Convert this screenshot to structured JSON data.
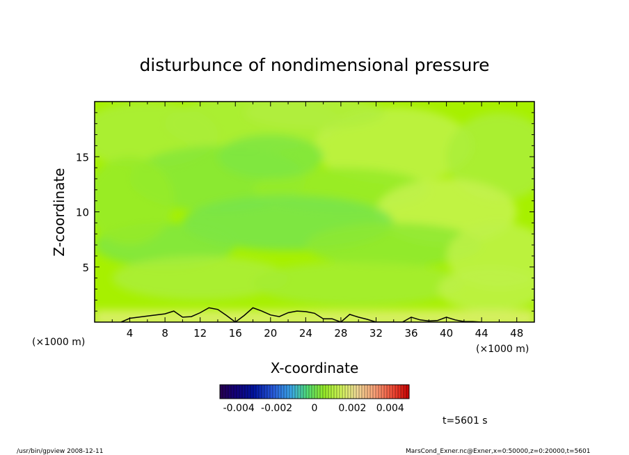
{
  "chart_data": {
    "type": "heatmap",
    "title": "disturbunce of nondimensional pressure",
    "xlabel": "X-coordinate",
    "ylabel": "Z-coordinate",
    "x_unit": "(×1000 m)",
    "y_unit": "(×1000 m)",
    "xlim": [
      0,
      50
    ],
    "ylim": [
      0,
      20
    ],
    "x_ticks": [
      "4",
      "8",
      "12",
      "16",
      "20",
      "24",
      "28",
      "32",
      "36",
      "40",
      "44",
      "48"
    ],
    "y_ticks": [
      "5",
      "10",
      "15"
    ],
    "colorbar": {
      "range": [
        -0.005,
        0.005
      ],
      "ticks": [
        "-0.004",
        "-0.002",
        "0",
        "0.002",
        "0.004"
      ]
    },
    "field_value_range": [
      -0.0002,
      0.0012
    ],
    "contour_level": 0.001,
    "contour_x": [
      3,
      4,
      6,
      8,
      9,
      10,
      11,
      12,
      13,
      14,
      15,
      16,
      17,
      18,
      19,
      20,
      21,
      22,
      23,
      24,
      25,
      26,
      27,
      28,
      29,
      30,
      31,
      32,
      35,
      36,
      37,
      38,
      39,
      40,
      41,
      42,
      43,
      44
    ],
    "contour_z": [
      0,
      0.35,
      0.55,
      0.75,
      1.0,
      0.45,
      0.5,
      0.85,
      1.3,
      1.15,
      0.6,
      0,
      0.6,
      1.3,
      1.0,
      0.65,
      0.5,
      0.85,
      1.0,
      0.95,
      0.8,
      0.3,
      0.3,
      0,
      0.7,
      0.45,
      0.25,
      0,
      0,
      0.45,
      0.2,
      0.1,
      0.15,
      0.45,
      0.2,
      0.05,
      0.05,
      0
    ],
    "time_label": "t=5601 s"
  },
  "footer": {
    "program": "/usr/bin/gpview   2008-12-11",
    "source": "MarsCond_Exner.nc@Exner,x=0:50000,z=0:20000,t=5601"
  }
}
